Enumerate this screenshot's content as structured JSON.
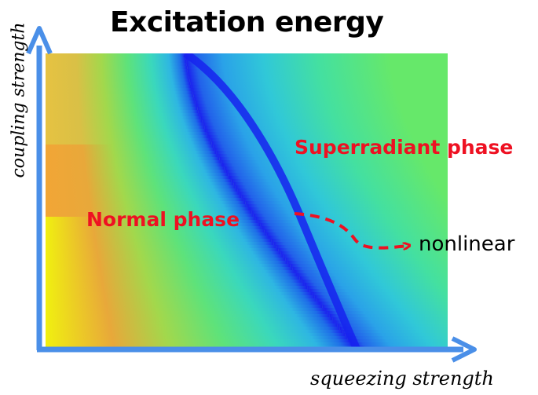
{
  "title": "Excitation energy",
  "axes": {
    "x_label": "squeezing strength",
    "y_label": "coupling strength"
  },
  "regions": {
    "normal": "Normal phase",
    "superradiant": "Superradiant phase"
  },
  "annotation": {
    "text": "nonlinear"
  },
  "colors": {
    "axis": "#4a8fe8",
    "label_red": "#ee1122",
    "boundary": "#1a22ee",
    "heatmap_low": "#1a22ee",
    "heatmap_high": "#f2f20a"
  }
}
